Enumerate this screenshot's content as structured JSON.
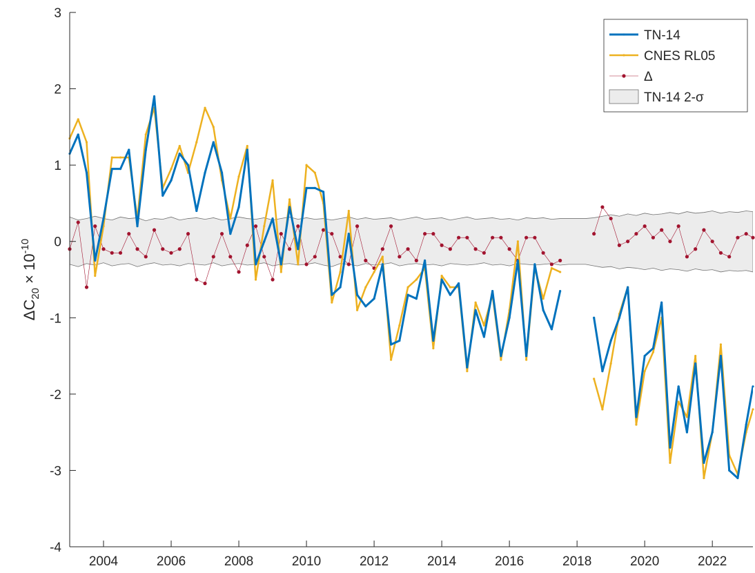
{
  "chart_data": {
    "type": "line",
    "ylabel": [
      "ΔC",
      "20",
      " × 10",
      "-10"
    ],
    "xlim": [
      2003,
      2023.2
    ],
    "ylim": [
      -4,
      3
    ],
    "xticks": [
      2004,
      2006,
      2008,
      2010,
      2012,
      2014,
      2016,
      2018,
      2020,
      2022
    ],
    "yticks": [
      -4,
      -3,
      -2,
      -1,
      0,
      1,
      2,
      3
    ],
    "legend": "upper right",
    "x": [
      2003,
      2003.25,
      2003.5,
      2003.75,
      2004,
      2004.25,
      2004.5,
      2004.75,
      2005,
      2005.25,
      2005.5,
      2005.75,
      2006,
      2006.25,
      2006.5,
      2006.75,
      2007,
      2007.25,
      2007.5,
      2007.75,
      2008,
      2008.25,
      2008.5,
      2008.75,
      2009,
      2009.25,
      2009.5,
      2009.75,
      2010,
      2010.25,
      2010.5,
      2010.75,
      2011,
      2011.25,
      2011.5,
      2011.75,
      2012,
      2012.25,
      2012.5,
      2012.75,
      2013,
      2013.25,
      2013.5,
      2013.75,
      2014,
      2014.25,
      2014.5,
      2014.75,
      2015,
      2015.25,
      2015.5,
      2015.75,
      2016,
      2016.25,
      2016.5,
      2016.75,
      2017,
      2017.25,
      2017.5,
      2017.75,
      2018,
      2018.25,
      2018.5,
      2018.75,
      2019,
      2019.25,
      2019.5,
      2019.75,
      2020,
      2020.25,
      2020.5,
      2020.75,
      2021,
      2021.25,
      2021.5,
      2021.75,
      2022,
      2022.25,
      2022.5,
      2022.75,
      2023,
      2023.2
    ],
    "series": [
      {
        "name": "TN-14",
        "color": "#0072bd",
        "width": 3,
        "values": [
          1.15,
          1.4,
          0.9,
          -0.25,
          0.3,
          0.95,
          0.95,
          1.2,
          0.2,
          1.2,
          1.9,
          0.6,
          0.8,
          1.15,
          1.0,
          0.4,
          0.9,
          1.3,
          0.9,
          0.1,
          0.45,
          1.2,
          -0.3,
          0.0,
          0.3,
          -0.3,
          0.45,
          -0.1,
          0.7,
          0.7,
          0.65,
          -0.7,
          -0.6,
          0.1,
          -0.7,
          -0.85,
          -0.75,
          -0.3,
          -1.35,
          -1.3,
          -0.7,
          -0.75,
          -0.25,
          -1.3,
          -0.5,
          -0.7,
          -0.55,
          -1.65,
          -0.9,
          -1.25,
          -0.65,
          -1.5,
          -1.0,
          -0.25,
          -1.5,
          -0.3,
          -0.9,
          -1.15,
          -0.65,
          null,
          null,
          null,
          -1.0,
          -1.7,
          -1.3,
          -1.0,
          -0.6,
          -2.3,
          -1.5,
          -1.4,
          -0.8,
          -2.7,
          -1.9,
          -2.5,
          -1.6,
          -2.9,
          -2.5,
          -1.5,
          -3.0,
          -3.1,
          -2.4,
          -1.9
        ]
      },
      {
        "name": "CNES RL05",
        "color": "#edb120",
        "width": 2.5,
        "values": [
          1.35,
          1.6,
          1.3,
          -0.45,
          0.2,
          1.1,
          1.1,
          1.1,
          0.3,
          1.4,
          1.75,
          0.7,
          0.95,
          1.25,
          0.9,
          1.3,
          1.75,
          1.5,
          0.8,
          0.3,
          0.85,
          1.25,
          -0.5,
          0.2,
          0.8,
          -0.4,
          0.55,
          -0.3,
          1.0,
          0.9,
          0.5,
          -0.8,
          -0.4,
          0.4,
          -0.9,
          -0.6,
          -0.4,
          -0.2,
          -1.55,
          -1.1,
          -0.6,
          -0.5,
          -0.35,
          -1.4,
          -0.45,
          -0.6,
          -0.6,
          -1.7,
          -0.8,
          -1.1,
          -0.7,
          -1.55,
          -0.9,
          0.0,
          -1.55,
          -0.35,
          -0.75,
          -0.35,
          -0.4,
          null,
          null,
          null,
          -1.8,
          -2.2,
          -1.6,
          -0.95,
          -0.6,
          -2.4,
          -1.7,
          -1.45,
          -1.0,
          -2.9,
          -2.1,
          -2.3,
          -1.5,
          -3.1,
          -2.5,
          -1.35,
          -2.8,
          -3.05,
          -2.5,
          -2.2
        ]
      },
      {
        "name": "Δ",
        "color": "#a2142f",
        "width": 0.6,
        "values": [
          -0.1,
          0.25,
          -0.6,
          0.2,
          -0.1,
          -0.15,
          -0.15,
          0.1,
          -0.1,
          -0.2,
          0.15,
          -0.1,
          -0.15,
          -0.1,
          0.1,
          -0.5,
          -0.55,
          -0.2,
          0.1,
          -0.2,
          -0.4,
          -0.05,
          0.2,
          -0.2,
          -0.5,
          0.1,
          -0.1,
          0.2,
          -0.3,
          -0.2,
          0.15,
          0.1,
          -0.2,
          -0.3,
          0.2,
          -0.25,
          -0.35,
          -0.1,
          0.2,
          -0.2,
          -0.1,
          -0.25,
          0.1,
          0.1,
          -0.05,
          -0.1,
          0.05,
          0.05,
          -0.1,
          -0.15,
          0.05,
          0.05,
          -0.1,
          -0.25,
          0.05,
          0.05,
          -0.15,
          -0.3,
          -0.25,
          null,
          null,
          null,
          0.1,
          0.45,
          0.3,
          -0.05,
          0.0,
          0.1,
          0.2,
          0.05,
          0.15,
          0.0,
          0.2,
          -0.2,
          -0.1,
          0.15,
          0.0,
          -0.15,
          -0.2,
          0.05,
          0.1,
          0.05
        ]
      }
    ],
    "band": {
      "name": "TN-14 2-σ",
      "color": "#ececec",
      "edge": "#707070",
      "upper": [
        0.32,
        0.28,
        0.3,
        0.33,
        0.3,
        0.28,
        0.32,
        0.3,
        0.31,
        0.27,
        0.3,
        0.29,
        0.32,
        0.28,
        0.3,
        0.31,
        0.29,
        0.31,
        0.28,
        0.3,
        0.32,
        0.3,
        0.29,
        0.31,
        0.28,
        0.3,
        0.32,
        0.29,
        0.31,
        0.29,
        0.3,
        0.28,
        0.3,
        0.32,
        0.29,
        0.31,
        0.29,
        0.3,
        0.31,
        0.28,
        0.3,
        0.32,
        0.29,
        0.3,
        0.31,
        0.28,
        0.3,
        0.32,
        0.29,
        0.3,
        0.31,
        0.29,
        0.3,
        0.28,
        0.31,
        0.3,
        0.31,
        0.29,
        0.3,
        0.3,
        0.3,
        0.3,
        0.31,
        0.33,
        0.35,
        0.33,
        0.36,
        0.34,
        0.37,
        0.35,
        0.36,
        0.38,
        0.36,
        0.39,
        0.37,
        0.38,
        0.4,
        0.37,
        0.39,
        0.38,
        0.4,
        0.39
      ],
      "lower": [
        -0.3,
        -0.33,
        -0.29,
        -0.31,
        -0.28,
        -0.32,
        -0.3,
        -0.29,
        -0.33,
        -0.3,
        -0.28,
        -0.31,
        -0.3,
        -0.32,
        -0.29,
        -0.3,
        -0.31,
        -0.28,
        -0.32,
        -0.3,
        -0.29,
        -0.31,
        -0.3,
        -0.28,
        -0.32,
        -0.3,
        -0.29,
        -0.31,
        -0.3,
        -0.28,
        -0.31,
        -0.33,
        -0.29,
        -0.3,
        -0.32,
        -0.29,
        -0.31,
        -0.3,
        -0.28,
        -0.32,
        -0.3,
        -0.29,
        -0.31,
        -0.3,
        -0.32,
        -0.29,
        -0.3,
        -0.31,
        -0.3,
        -0.28,
        -0.31,
        -0.3,
        -0.32,
        -0.29,
        -0.3,
        -0.31,
        -0.3,
        -0.29,
        -0.31,
        -0.3,
        -0.3,
        -0.3,
        -0.32,
        -0.34,
        -0.33,
        -0.36,
        -0.34,
        -0.35,
        -0.37,
        -0.35,
        -0.38,
        -0.36,
        -0.37,
        -0.39,
        -0.36,
        -0.38,
        -0.37,
        -0.4,
        -0.38,
        -0.39,
        -0.38,
        -0.4
      ]
    }
  }
}
